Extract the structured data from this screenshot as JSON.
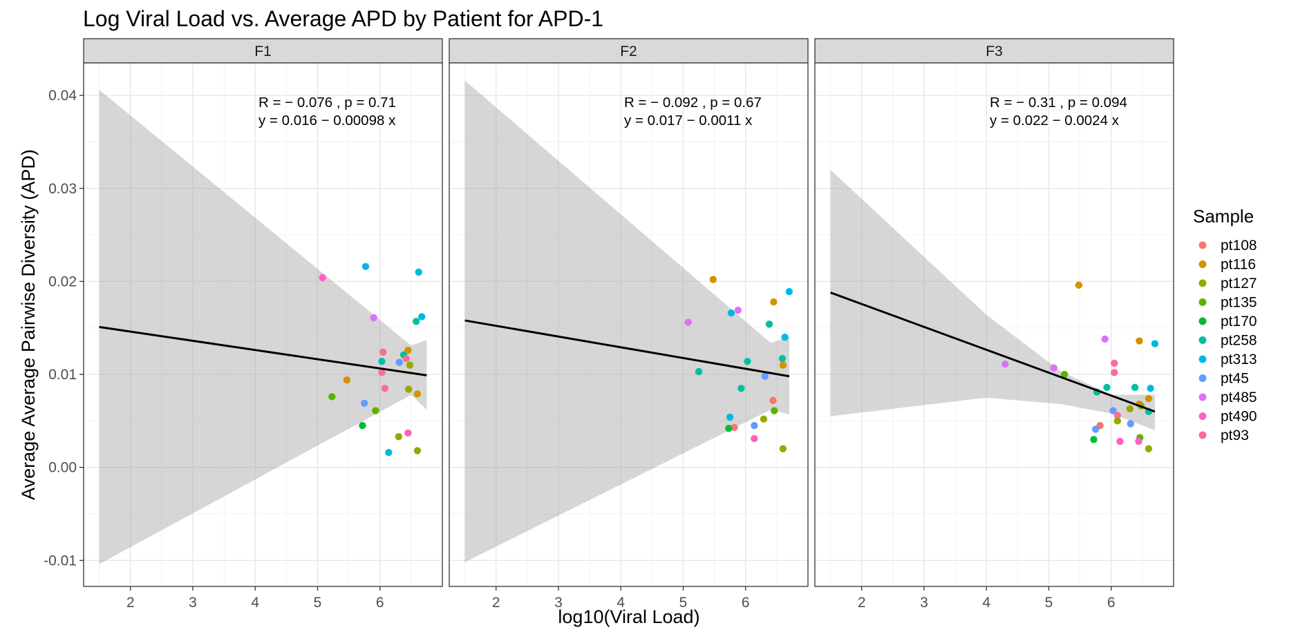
{
  "chart_data": {
    "type": "scatter",
    "title": "Log Viral Load vs. Average APD by Patient for APD-1",
    "xlabel": "log10(Viral Load)",
    "ylabel": "Average Average Pairwise Diversity (APD)",
    "xlim": [
      1.25,
      7.0
    ],
    "ylim": [
      -0.0128,
      0.0435
    ],
    "x_ticks": [
      2,
      3,
      4,
      5,
      6
    ],
    "y_ticks": [
      -0.01,
      0.0,
      0.01,
      0.02,
      0.03,
      0.04
    ],
    "y_tick_labels": [
      "-0.01",
      "0.00",
      "0.01",
      "0.02",
      "0.03",
      "0.04"
    ],
    "grid": true,
    "legend": {
      "title": "Sample",
      "position": "right",
      "entries": [
        {
          "name": "pt108",
          "color": "#F8766D"
        },
        {
          "name": "pt116",
          "color": "#D39200"
        },
        {
          "name": "pt127",
          "color": "#93AA00"
        },
        {
          "name": "pt135",
          "color": "#5BB300"
        },
        {
          "name": "pt170",
          "color": "#00BA38"
        },
        {
          "name": "pt258",
          "color": "#00C19F"
        },
        {
          "name": "pt313",
          "color": "#00B9E3"
        },
        {
          "name": "pt45",
          "color": "#619CFF"
        },
        {
          "name": "pt485",
          "color": "#DB72FB"
        },
        {
          "name": "pt490",
          "color": "#FF61C3"
        },
        {
          "name": "pt93",
          "color": "#FF6C91"
        }
      ]
    },
    "panels": [
      {
        "name": "F1",
        "stat_r": "R = − 0.076 , p = 0.71",
        "stat_eq": "y = 0.016 − 0.00098 x",
        "fit": {
          "x_range": [
            1.5,
            6.75
          ],
          "y_start": 0.0151,
          "y_end": 0.0099
        },
        "band": [
          [
            1.5,
            0.0406,
            -0.0104
          ],
          [
            6.5,
            0.0131,
            0.0078
          ],
          [
            6.75,
            0.0137,
            0.0062
          ]
        ],
        "points": [
          {
            "sample": "pt490",
            "x": 5.08,
            "y": 0.0204
          },
          {
            "sample": "pt313",
            "x": 5.77,
            "y": 0.0216
          },
          {
            "sample": "pt313",
            "x": 6.62,
            "y": 0.021
          },
          {
            "sample": "pt485",
            "x": 5.9,
            "y": 0.0161
          },
          {
            "sample": "pt313",
            "x": 6.67,
            "y": 0.0162
          },
          {
            "sample": "pt258",
            "x": 6.58,
            "y": 0.0157
          },
          {
            "sample": "pt116",
            "x": 6.45,
            "y": 0.0126
          },
          {
            "sample": "pt93",
            "x": 6.05,
            "y": 0.0124
          },
          {
            "sample": "pt258",
            "x": 6.38,
            "y": 0.0121
          },
          {
            "sample": "pt93",
            "x": 6.42,
            "y": 0.0117
          },
          {
            "sample": "pt258",
            "x": 6.03,
            "y": 0.0114
          },
          {
            "sample": "pt45",
            "x": 6.31,
            "y": 0.0113
          },
          {
            "sample": "pt127",
            "x": 6.48,
            "y": 0.011
          },
          {
            "sample": "pt93",
            "x": 6.03,
            "y": 0.0102
          },
          {
            "sample": "pt116",
            "x": 5.47,
            "y": 0.0094
          },
          {
            "sample": "pt93",
            "x": 6.08,
            "y": 0.0085
          },
          {
            "sample": "pt127",
            "x": 6.46,
            "y": 0.0084
          },
          {
            "sample": "pt116",
            "x": 6.6,
            "y": 0.0079
          },
          {
            "sample": "pt135",
            "x": 5.23,
            "y": 0.0076
          },
          {
            "sample": "pt45",
            "x": 5.75,
            "y": 0.0069
          },
          {
            "sample": "pt135",
            "x": 5.93,
            "y": 0.0061
          },
          {
            "sample": "pt170",
            "x": 5.72,
            "y": 0.0045
          },
          {
            "sample": "pt490",
            "x": 6.45,
            "y": 0.0037
          },
          {
            "sample": "pt127",
            "x": 6.3,
            "y": 0.0033
          },
          {
            "sample": "pt127",
            "x": 6.6,
            "y": 0.0018
          },
          {
            "sample": "pt313",
            "x": 6.14,
            "y": 0.0016
          }
        ]
      },
      {
        "name": "F2",
        "stat_r": "R = − 0.092 , p = 0.67",
        "stat_eq": "y = 0.017 − 0.0011 x",
        "fit": {
          "x_range": [
            1.5,
            6.7
          ],
          "y_start": 0.0158,
          "y_end": 0.0098
        },
        "band": [
          [
            1.5,
            0.0416,
            -0.0102
          ],
          [
            6.4,
            0.0134,
            0.0062
          ],
          [
            6.7,
            0.014,
            0.0057
          ]
        ],
        "points": [
          {
            "sample": "pt116",
            "x": 5.48,
            "y": 0.0202
          },
          {
            "sample": "pt313",
            "x": 6.7,
            "y": 0.0189
          },
          {
            "sample": "pt116",
            "x": 6.45,
            "y": 0.0178
          },
          {
            "sample": "pt485",
            "x": 5.88,
            "y": 0.0169
          },
          {
            "sample": "pt313",
            "x": 5.77,
            "y": 0.0166
          },
          {
            "sample": "pt485",
            "x": 5.08,
            "y": 0.0156
          },
          {
            "sample": "pt258",
            "x": 6.38,
            "y": 0.0154
          },
          {
            "sample": "pt313",
            "x": 6.63,
            "y": 0.014
          },
          {
            "sample": "pt258",
            "x": 6.59,
            "y": 0.0117
          },
          {
            "sample": "pt258",
            "x": 6.03,
            "y": 0.0114
          },
          {
            "sample": "pt116",
            "x": 6.6,
            "y": 0.011
          },
          {
            "sample": "pt258",
            "x": 5.25,
            "y": 0.0103
          },
          {
            "sample": "pt45",
            "x": 6.31,
            "y": 0.0098
          },
          {
            "sample": "pt258",
            "x": 5.93,
            "y": 0.0085
          },
          {
            "sample": "pt108",
            "x": 6.44,
            "y": 0.0072
          },
          {
            "sample": "pt135",
            "x": 6.46,
            "y": 0.0061
          },
          {
            "sample": "pt313",
            "x": 5.75,
            "y": 0.0054
          },
          {
            "sample": "pt127",
            "x": 6.29,
            "y": 0.0052
          },
          {
            "sample": "pt45",
            "x": 6.14,
            "y": 0.0045
          },
          {
            "sample": "pt108",
            "x": 5.82,
            "y": 0.0043
          },
          {
            "sample": "pt170",
            "x": 5.73,
            "y": 0.0042
          },
          {
            "sample": "pt490",
            "x": 6.14,
            "y": 0.0031
          },
          {
            "sample": "pt127",
            "x": 6.6,
            "y": 0.002
          }
        ]
      },
      {
        "name": "F3",
        "stat_r": "R = − 0.31 , p = 0.094",
        "stat_eq": "y = 0.022 − 0.0024 x",
        "fit": {
          "x_range": [
            1.5,
            6.7
          ],
          "y_start": 0.0188,
          "y_end": 0.006
        },
        "band": [
          [
            1.5,
            0.032,
            0.0055
          ],
          [
            4.0,
            0.0164,
            0.0075
          ],
          [
            5.2,
            0.0103,
            0.0068
          ],
          [
            6.0,
            0.0078,
            0.0058
          ],
          [
            6.7,
            0.0078,
            0.004
          ]
        ],
        "points": [
          {
            "sample": "pt116",
            "x": 5.48,
            "y": 0.0196
          },
          {
            "sample": "pt485",
            "x": 5.9,
            "y": 0.0138
          },
          {
            "sample": "pt116",
            "x": 6.45,
            "y": 0.0136
          },
          {
            "sample": "pt313",
            "x": 6.7,
            "y": 0.0133
          },
          {
            "sample": "pt93",
            "x": 6.05,
            "y": 0.0112
          },
          {
            "sample": "pt485",
            "x": 4.3,
            "y": 0.0111
          },
          {
            "sample": "pt485",
            "x": 5.08,
            "y": 0.0107
          },
          {
            "sample": "pt93",
            "x": 6.05,
            "y": 0.0102
          },
          {
            "sample": "pt135",
            "x": 5.25,
            "y": 0.01
          },
          {
            "sample": "pt258",
            "x": 5.93,
            "y": 0.0086
          },
          {
            "sample": "pt258",
            "x": 6.38,
            "y": 0.0086
          },
          {
            "sample": "pt313",
            "x": 6.63,
            "y": 0.0085
          },
          {
            "sample": "pt258",
            "x": 5.77,
            "y": 0.0081
          },
          {
            "sample": "pt116",
            "x": 6.6,
            "y": 0.0074
          },
          {
            "sample": "pt116",
            "x": 6.45,
            "y": 0.0068
          },
          {
            "sample": "pt127",
            "x": 6.48,
            "y": 0.0066
          },
          {
            "sample": "pt127",
            "x": 6.3,
            "y": 0.0063
          },
          {
            "sample": "pt45",
            "x": 6.03,
            "y": 0.0061
          },
          {
            "sample": "pt258",
            "x": 6.6,
            "y": 0.006
          },
          {
            "sample": "pt93",
            "x": 6.1,
            "y": 0.0056
          },
          {
            "sample": "pt127",
            "x": 6.1,
            "y": 0.005
          },
          {
            "sample": "pt45",
            "x": 6.31,
            "y": 0.0047
          },
          {
            "sample": "pt108",
            "x": 5.82,
            "y": 0.0045
          },
          {
            "sample": "pt45",
            "x": 5.75,
            "y": 0.0041
          },
          {
            "sample": "pt135",
            "x": 6.46,
            "y": 0.0032
          },
          {
            "sample": "pt170",
            "x": 5.72,
            "y": 0.003
          },
          {
            "sample": "pt490",
            "x": 6.14,
            "y": 0.0028
          },
          {
            "sample": "pt490",
            "x": 6.44,
            "y": 0.0028
          },
          {
            "sample": "pt127",
            "x": 6.6,
            "y": 0.002
          }
        ]
      }
    ]
  }
}
